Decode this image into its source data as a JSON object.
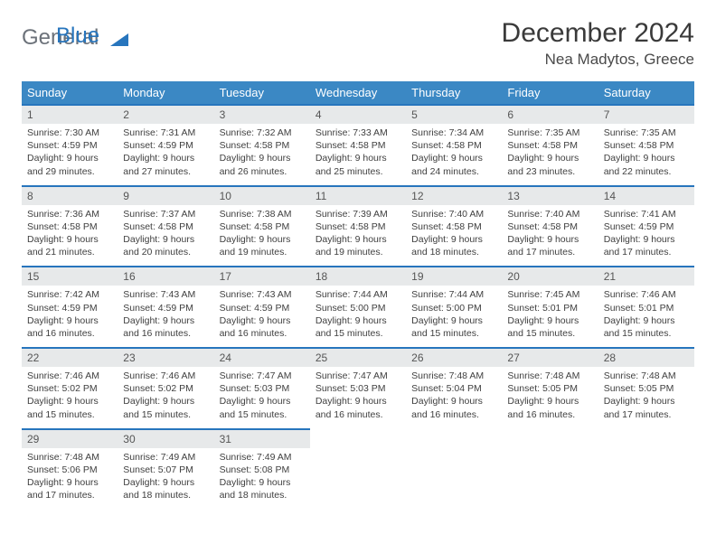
{
  "logo": {
    "general": "General",
    "blue": "Blue"
  },
  "title": {
    "month": "December 2024",
    "location": "Nea Madytos, Greece"
  },
  "colors": {
    "header_bg": "#3b88c4",
    "accent": "#2775bd",
    "daybar_bg": "#e7e9ea",
    "text": "#333333",
    "logo_gray": "#6c727a"
  },
  "weekdays": [
    "Sunday",
    "Monday",
    "Tuesday",
    "Wednesday",
    "Thursday",
    "Friday",
    "Saturday"
  ],
  "days": [
    {
      "n": "1",
      "sunrise": "7:30 AM",
      "sunset": "4:59 PM",
      "daylight": "9 hours and 29 minutes."
    },
    {
      "n": "2",
      "sunrise": "7:31 AM",
      "sunset": "4:59 PM",
      "daylight": "9 hours and 27 minutes."
    },
    {
      "n": "3",
      "sunrise": "7:32 AM",
      "sunset": "4:58 PM",
      "daylight": "9 hours and 26 minutes."
    },
    {
      "n": "4",
      "sunrise": "7:33 AM",
      "sunset": "4:58 PM",
      "daylight": "9 hours and 25 minutes."
    },
    {
      "n": "5",
      "sunrise": "7:34 AM",
      "sunset": "4:58 PM",
      "daylight": "9 hours and 24 minutes."
    },
    {
      "n": "6",
      "sunrise": "7:35 AM",
      "sunset": "4:58 PM",
      "daylight": "9 hours and 23 minutes."
    },
    {
      "n": "7",
      "sunrise": "7:35 AM",
      "sunset": "4:58 PM",
      "daylight": "9 hours and 22 minutes."
    },
    {
      "n": "8",
      "sunrise": "7:36 AM",
      "sunset": "4:58 PM",
      "daylight": "9 hours and 21 minutes."
    },
    {
      "n": "9",
      "sunrise": "7:37 AM",
      "sunset": "4:58 PM",
      "daylight": "9 hours and 20 minutes."
    },
    {
      "n": "10",
      "sunrise": "7:38 AM",
      "sunset": "4:58 PM",
      "daylight": "9 hours and 19 minutes."
    },
    {
      "n": "11",
      "sunrise": "7:39 AM",
      "sunset": "4:58 PM",
      "daylight": "9 hours and 19 minutes."
    },
    {
      "n": "12",
      "sunrise": "7:40 AM",
      "sunset": "4:58 PM",
      "daylight": "9 hours and 18 minutes."
    },
    {
      "n": "13",
      "sunrise": "7:40 AM",
      "sunset": "4:58 PM",
      "daylight": "9 hours and 17 minutes."
    },
    {
      "n": "14",
      "sunrise": "7:41 AM",
      "sunset": "4:59 PM",
      "daylight": "9 hours and 17 minutes."
    },
    {
      "n": "15",
      "sunrise": "7:42 AM",
      "sunset": "4:59 PM",
      "daylight": "9 hours and 16 minutes."
    },
    {
      "n": "16",
      "sunrise": "7:43 AM",
      "sunset": "4:59 PM",
      "daylight": "9 hours and 16 minutes."
    },
    {
      "n": "17",
      "sunrise": "7:43 AM",
      "sunset": "4:59 PM",
      "daylight": "9 hours and 16 minutes."
    },
    {
      "n": "18",
      "sunrise": "7:44 AM",
      "sunset": "5:00 PM",
      "daylight": "9 hours and 15 minutes."
    },
    {
      "n": "19",
      "sunrise": "7:44 AM",
      "sunset": "5:00 PM",
      "daylight": "9 hours and 15 minutes."
    },
    {
      "n": "20",
      "sunrise": "7:45 AM",
      "sunset": "5:01 PM",
      "daylight": "9 hours and 15 minutes."
    },
    {
      "n": "21",
      "sunrise": "7:46 AM",
      "sunset": "5:01 PM",
      "daylight": "9 hours and 15 minutes."
    },
    {
      "n": "22",
      "sunrise": "7:46 AM",
      "sunset": "5:02 PM",
      "daylight": "9 hours and 15 minutes."
    },
    {
      "n": "23",
      "sunrise": "7:46 AM",
      "sunset": "5:02 PM",
      "daylight": "9 hours and 15 minutes."
    },
    {
      "n": "24",
      "sunrise": "7:47 AM",
      "sunset": "5:03 PM",
      "daylight": "9 hours and 15 minutes."
    },
    {
      "n": "25",
      "sunrise": "7:47 AM",
      "sunset": "5:03 PM",
      "daylight": "9 hours and 16 minutes."
    },
    {
      "n": "26",
      "sunrise": "7:48 AM",
      "sunset": "5:04 PM",
      "daylight": "9 hours and 16 minutes."
    },
    {
      "n": "27",
      "sunrise": "7:48 AM",
      "sunset": "5:05 PM",
      "daylight": "9 hours and 16 minutes."
    },
    {
      "n": "28",
      "sunrise": "7:48 AM",
      "sunset": "5:05 PM",
      "daylight": "9 hours and 17 minutes."
    },
    {
      "n": "29",
      "sunrise": "7:48 AM",
      "sunset": "5:06 PM",
      "daylight": "9 hours and 17 minutes."
    },
    {
      "n": "30",
      "sunrise": "7:49 AM",
      "sunset": "5:07 PM",
      "daylight": "9 hours and 18 minutes."
    },
    {
      "n": "31",
      "sunrise": "7:49 AM",
      "sunset": "5:08 PM",
      "daylight": "9 hours and 18 minutes."
    }
  ],
  "labels": {
    "sunrise_prefix": "Sunrise: ",
    "sunset_prefix": "Sunset: ",
    "daylight_prefix": "Daylight: "
  },
  "layout": {
    "start_weekday": 0,
    "total_days": 31
  }
}
